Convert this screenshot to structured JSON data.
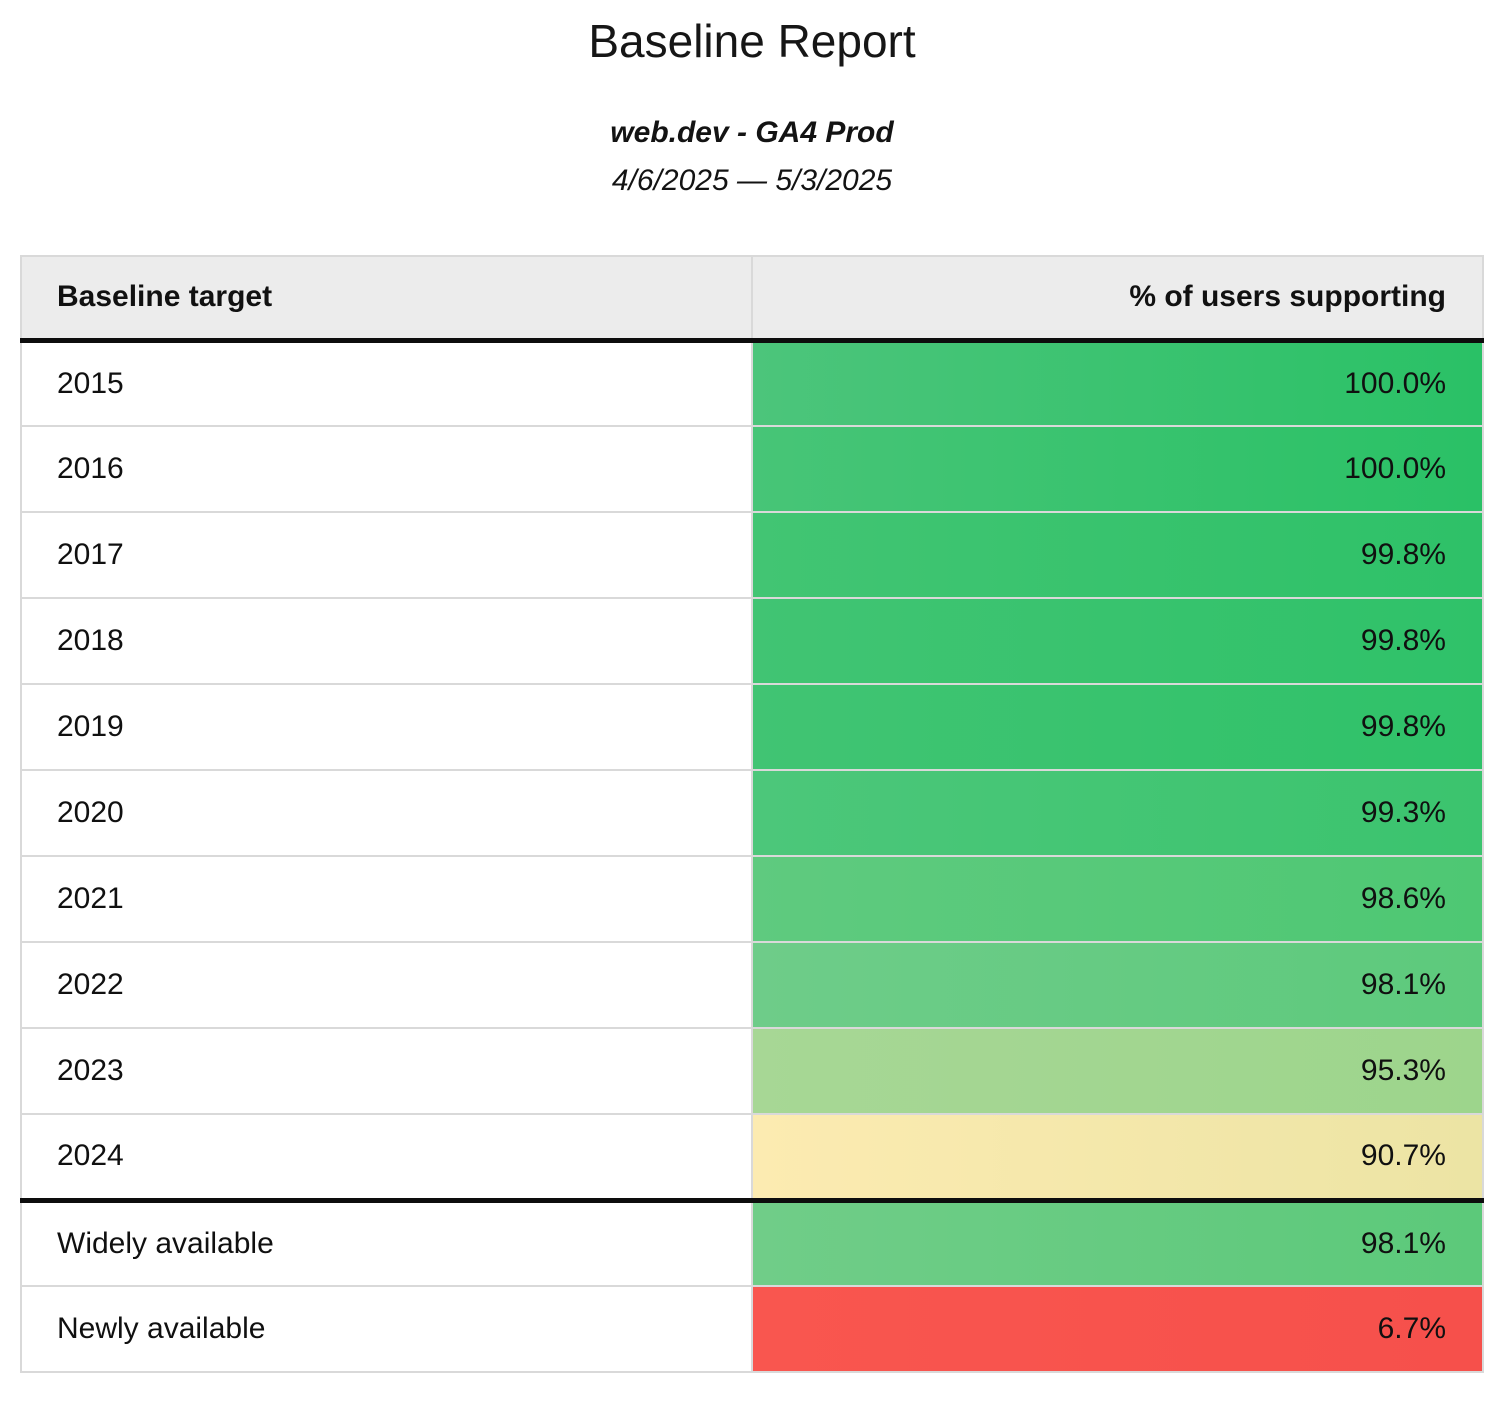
{
  "header": {
    "title": "Baseline Report",
    "subtitle": "web.dev - GA4 Prod",
    "date_range": "4/6/2025 — 5/3/2025"
  },
  "table": {
    "columns": [
      "Baseline target",
      "% of users supporting"
    ],
    "rows": [
      {
        "target": "2015",
        "value": "100.0%",
        "bg_left": "#4cc57b",
        "bg_right": "#2ac166"
      },
      {
        "target": "2016",
        "value": "100.0%",
        "bg_left": "#47c577",
        "bg_right": "#2ac166"
      },
      {
        "target": "2017",
        "value": "99.8%",
        "bg_left": "#42c573",
        "bg_right": "#2ec168"
      },
      {
        "target": "2018",
        "value": "99.8%",
        "bg_left": "#41c473",
        "bg_right": "#2fc269"
      },
      {
        "target": "2019",
        "value": "99.8%",
        "bg_left": "#41c473",
        "bg_right": "#2fc269"
      },
      {
        "target": "2020",
        "value": "99.3%",
        "bg_left": "#4cc77a",
        "bg_right": "#3bc46e"
      },
      {
        "target": "2021",
        "value": "98.6%",
        "bg_left": "#5fca7f",
        "bg_right": "#4ec873"
      },
      {
        "target": "2022",
        "value": "98.1%",
        "bg_left": "#6ecc89",
        "bg_right": "#5dca7c"
      },
      {
        "target": "2023",
        "value": "95.3%",
        "bg_left": "#a7d795",
        "bg_right": "#9dd58c"
      },
      {
        "target": "2024",
        "value": "90.7%",
        "bg_left": "#fcebb1",
        "bg_right": "#ece4a4"
      },
      {
        "target": "Widely available",
        "value": "98.1%",
        "bg_left": "#70cd88",
        "bg_right": "#5cc97a"
      },
      {
        "target": "Newly available",
        "value": "6.7%",
        "bg_left": "#f9564f",
        "bg_right": "#f6504b"
      }
    ]
  },
  "colors": {
    "header_background": "#ececec",
    "grid_border": "#d9d9d9",
    "heavy_rule": "#0d0d0d",
    "green_high": "#2ac166",
    "yellow_mid": "#f3e6aa",
    "red_low": "#f8544e"
  },
  "chart_data": {
    "type": "table",
    "title": "Baseline Report",
    "subtitle": "web.dev - GA4 Prod",
    "date_range": "4/6/2025 — 5/3/2025",
    "columns": [
      "Baseline target",
      "% of users supporting"
    ],
    "rows": [
      [
        "2015",
        100.0
      ],
      [
        "2016",
        100.0
      ],
      [
        "2017",
        99.8
      ],
      [
        "2018",
        99.8
      ],
      [
        "2019",
        99.8
      ],
      [
        "2020",
        99.3
      ],
      [
        "2021",
        98.6
      ],
      [
        "2022",
        98.1
      ],
      [
        "2023",
        95.3
      ],
      [
        "2024",
        90.7
      ],
      [
        "Widely available",
        98.1
      ],
      [
        "Newly available",
        6.7
      ]
    ],
    "value_unit": "percent",
    "color_scale": {
      "style": "heatmap on value column",
      "high": "green (#2ac166 at ~100%)",
      "mid": "yellow (#f3e6aa at ~90%)",
      "low": "red (#f8544e at ~7%)"
    },
    "layout": {
      "grid": "light gray cell borders",
      "heavy_rule_below_header": true,
      "heavy_rule_above_row": "Widely available"
    }
  }
}
